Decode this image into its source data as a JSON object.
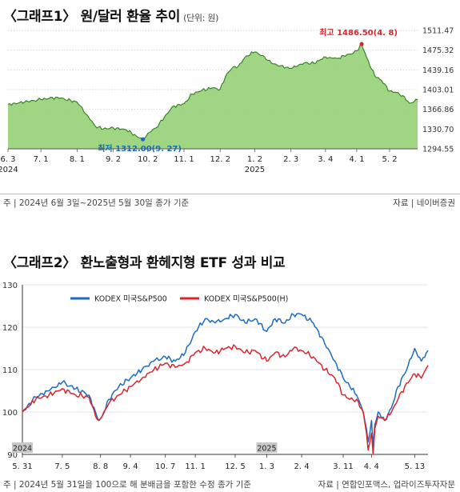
{
  "chart1": {
    "title": "〈그래프1〉 원/달러 환율 추이",
    "unit": "(단위: 원)",
    "note": "주 | 2024년 6월 3일~2025년 5월 30일 종가 기준",
    "source": "자료 | 네이버증권",
    "colors": {
      "line": "#2e7d1f",
      "fill": "#8fcf6d",
      "peak": "#d7262e",
      "trough": "#1a6ab8",
      "grid": "#c9c9c9"
    }
  },
  "chart2": {
    "title": "〈그래프2〉 환노출형과 환헤지형 ETF 성과 비교",
    "note": "주 | 2024년 5월 31일을 100으로 해 분배금을 포함한 수정 종가 기준",
    "source": "자료 | 연합인포맥스, 업라이즈투자자문",
    "colors": {
      "s1": "#1c6bc4",
      "s2": "#d9262e",
      "grid": "#dcdcdc",
      "axis": "#333333",
      "tag": "#c8c8c8"
    }
  },
  "chart_data": [
    {
      "type": "area",
      "title": "〈그래프1〉 원/달러 환율 추이",
      "unit": "(단위: 원)",
      "x_ticks": [
        "6. 3",
        "7. 1",
        "8. 1",
        "9. 2",
        "10. 2",
        "11. 1",
        "12. 2",
        "1. 2",
        "2. 3",
        "3. 4",
        "4. 1",
        "5. 2"
      ],
      "x_tick_index": [
        0,
        20,
        42,
        64,
        85,
        107,
        129,
        150,
        172,
        193,
        212,
        232
      ],
      "year_labels": [
        {
          "text": "2024",
          "at_tick": 0
        },
        {
          "text": "2025",
          "at_tick": 7
        }
      ],
      "y_ticks": [
        1294.55,
        1330.7,
        1366.86,
        1403.01,
        1439.16,
        1475.32,
        1511.47
      ],
      "ylim": [
        1294.55,
        1511.47
      ],
      "n_points": 250,
      "series": [
        {
          "name": "원/달러 환율",
          "x": [
            0,
            10,
            20,
            30,
            42,
            48,
            53,
            58,
            64,
            72,
            78,
            82,
            85,
            90,
            95,
            100,
            107,
            112,
            118,
            124,
            129,
            133,
            137,
            140,
            145,
            150,
            156,
            160,
            165,
            172,
            176,
            180,
            186,
            190,
            193,
            196,
            200,
            204,
            207,
            210,
            212,
            215,
            218,
            223,
            227,
            232,
            236,
            240,
            244,
            249
          ],
          "y": [
            1376,
            1380,
            1385,
            1389,
            1380,
            1357,
            1336,
            1331,
            1333,
            1329,
            1318,
            1312,
            1323,
            1333,
            1352,
            1372,
            1377,
            1395,
            1402,
            1406,
            1404,
            1432,
            1445,
            1446,
            1465,
            1472,
            1463,
            1452,
            1446,
            1442,
            1446,
            1452,
            1451,
            1458,
            1463,
            1462,
            1460,
            1465,
            1468,
            1470,
            1474,
            1486.5,
            1462,
            1428,
            1420,
            1400,
            1398,
            1392,
            1378,
            1384
          ]
        }
      ],
      "annotations": [
        {
          "label": "최고 1486.50(4. 8)",
          "x": 215,
          "y": 1486.5,
          "kind": "max"
        },
        {
          "label": "최저 1312.00(9. 27)",
          "x": 82,
          "y": 1312.0,
          "kind": "min"
        }
      ]
    },
    {
      "type": "line",
      "title": "〈그래프2〉 환노출형과 환헤지형 ETF 성과 비교",
      "x_ticks": [
        "5. 31",
        "7. 5",
        "8. 8",
        "9. 4",
        "10. 7",
        "11. 1",
        "12. 5",
        "1. 3",
        "2. 4",
        "3. 11",
        "4. 4",
        "5. 13"
      ],
      "x_tick_index": [
        0,
        24,
        47,
        65,
        86,
        104,
        128,
        147,
        168,
        193,
        210,
        236
      ],
      "year_labels": [
        {
          "text": "2024",
          "at_tick": 0
        },
        {
          "text": "2025",
          "at_tick": 7
        }
      ],
      "y_ticks": [
        90,
        100,
        110,
        120,
        130
      ],
      "ylim": [
        90,
        130
      ],
      "n_points": 245,
      "series": [
        {
          "name": "KODEX 미국S&P500",
          "x": [
            0,
            8,
            16,
            24,
            32,
            40,
            44,
            46,
            48,
            52,
            58,
            65,
            72,
            79,
            86,
            92,
            98,
            104,
            110,
            116,
            122,
            128,
            134,
            140,
            147,
            152,
            158,
            163,
            168,
            175,
            182,
            188,
            193,
            197,
            201,
            205,
            207,
            208,
            209,
            210,
            211,
            212,
            214,
            218,
            222,
            226,
            230,
            236,
            240,
            244
          ],
          "y": [
            100,
            103.5,
            105,
            107,
            105.5,
            104,
            100,
            98,
            99,
            103,
            106,
            108,
            110,
            112,
            113,
            112,
            114,
            119,
            122,
            121,
            122,
            123,
            121,
            122,
            119,
            122,
            121,
            123,
            123,
            121,
            116,
            112,
            108,
            106,
            104,
            100,
            96,
            93,
            95,
            98,
            92,
            97,
            100,
            98,
            101,
            106,
            109,
            115,
            112,
            114.5
          ]
        },
        {
          "name": "KODEX 미국S&P500(H)",
          "x": [
            0,
            8,
            16,
            24,
            32,
            40,
            44,
            46,
            48,
            52,
            58,
            65,
            72,
            79,
            86,
            92,
            98,
            104,
            110,
            116,
            122,
            128,
            134,
            140,
            147,
            152,
            158,
            163,
            168,
            175,
            182,
            188,
            193,
            197,
            201,
            205,
            207,
            208,
            209,
            210,
            211,
            212,
            214,
            218,
            222,
            226,
            230,
            236,
            240,
            244
          ],
          "y": [
            100,
            103,
            104,
            105.5,
            104,
            103.5,
            99,
            98,
            99,
            102,
            104,
            106,
            108,
            110,
            111.5,
            110.5,
            111.5,
            114,
            115,
            114,
            115,
            115.5,
            114,
            114.5,
            112,
            114,
            113,
            115,
            114.5,
            113,
            110,
            108,
            104,
            103,
            103,
            100,
            95,
            91,
            93,
            95,
            90,
            96,
            99,
            98,
            100,
            103,
            106,
            109,
            108,
            111
          ]
        }
      ]
    }
  ]
}
